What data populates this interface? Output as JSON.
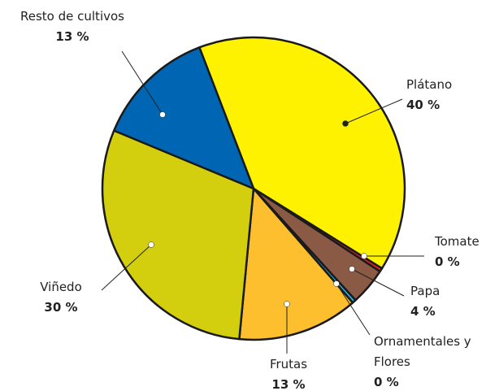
{
  "chart_data": {
    "type": "pie",
    "categories": [
      "Plátano",
      "Tomate",
      "Papa",
      "Ornamentales y Flores",
      "Frutas",
      "Viñedo",
      "Resto de cultivos"
    ],
    "values": [
      40,
      0.4,
      4,
      0.4,
      13,
      30,
      13
    ],
    "value_labels": [
      "40 %",
      "0 %",
      "4 %",
      "0 %",
      "13 %",
      "30 %",
      "13 %"
    ],
    "colors": [
      "#fff200",
      "#e0202a",
      "#8b5a44",
      "#29a8df",
      "#fdbf2d",
      "#d4cf0e",
      "#0066b3"
    ]
  }
}
